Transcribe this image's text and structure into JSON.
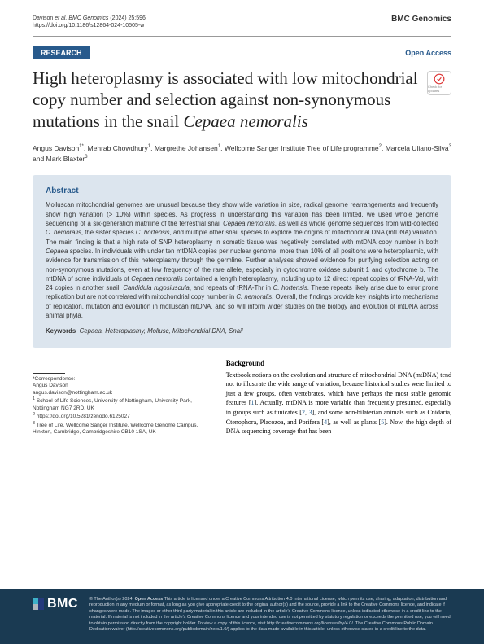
{
  "header": {
    "citation_authors": "Davison",
    "citation_journal": "et al. BMC Genomics",
    "citation_year_vol": "(2024) 25:596",
    "doi": "https://doi.org/10.1186/s12864-024-10505-w",
    "journal": "BMC Genomics"
  },
  "badges": {
    "research": "RESEARCH",
    "open_access": "Open Access"
  },
  "title_parts": {
    "main": "High heteroplasmy is associated with low mitochondrial copy number and selection against non-synonymous mutations in the snail ",
    "species": "Cepaea nemoralis"
  },
  "check_updates": "Check for updates",
  "authors_line": "Angus Davison<sup>1*</sup>, Mehrab Chowdhury<sup>1</sup>, Margrethe Johansen<sup>1</sup>, Wellcome Sanger Institute Tree of Life programme<sup>2</sup>, Marcela Uliano-Silva<sup>3</sup> and Mark Blaxter<sup>3</sup>",
  "abstract": {
    "heading": "Abstract",
    "text": "Molluscan mitochondrial genomes are unusual because they show wide variation in size, radical genome rearrangements and frequently show high variation (> 10%) within species. As progress in understanding this variation has been limited, we used whole genome sequencing of a six-generation matriline of the terrestrial snail <span class=\"italic\">Cepaea nemoralis</span>, as well as whole genome sequences from wild-collected <span class=\"italic\">C. nemoralis</span>, the sister species <span class=\"italic\">C. hortensis</span>, and multiple other snail species to explore the origins of mitochondrial DNA (mtDNA) variation. The main finding is that a high rate of SNP heteroplasmy in somatic tissue was negatively correlated with mtDNA copy number in both <span class=\"italic\">Cepaea</span> species. In individuals with under ten mtDNA copies per nuclear genome, more than 10% of all positions were heteroplasmic, with evidence for transmission of this heteroplasmy through the germline. Further analyses showed evidence for purifying selection acting on non-synonymous mutations, even at low frequency of the rare allele, especially in cytochrome oxidase subunit 1 and cytochrome b. The mtDNA of some individuals of <span class=\"italic\">Cepaea nemoralis</span> contained a length heteroplasmy, including up to 12 direct repeat copies of tRNA-Val, with 24 copies in another snail, <span class=\"italic\">Candidula rugosiuscula</span>, and repeats of tRNA-Thr in <span class=\"italic\">C. hortensis</span>. These repeats likely arise due to error prone replication but are not correlated with mitochondrial copy number in <span class=\"italic\">C. nemoralis</span>. Overall, the findings provide key insights into mechanisms of replication, mutation and evolution in molluscan mtDNA, and so will inform wider studies on the biology and evolution of mtDNA across animal phyla.",
    "keywords_label": "Keywords",
    "keywords": "Cepaea, Heteroplasmy, Mollusc, Mitochondrial DNA, Snail"
  },
  "correspondence": {
    "label": "*Correspondence:",
    "name": "Angus Davison",
    "email": "angus.davison@nottingham.ac.uk",
    "aff1": "<sup>1</sup> School of Life Sciences, University of Nottingham, University Park, Nottingham NG7 2RD, UK",
    "aff2": "<sup>2</sup> https://doi.org/10.5281/zenodo.6125027",
    "aff3": "<sup>3</sup> Tree of Life, Wellcome Sanger Institute, Wellcome Genome Campus, Hinxton, Cambridge, Cambridgeshire CB10 1SA, UK"
  },
  "background": {
    "heading": "Background",
    "text": "Textbook notions on the evolution and structure of mitochondrial DNA (mtDNA) tend not to illustrate the wide range of variation, because historical studies were limited to just a few groups, often vertebrates, which have perhaps the most stable genomic features [<span class=\"ref\">1</span>]. Actually, mtDNA is more variable than frequently presumed, especially in groups such as tunicates [<span class=\"ref\">2</span>, <span class=\"ref\">3</span>], and some non-bilaterian animals such as Cnidaria, Ctenophora, Placozoa, and Porifera [<span class=\"ref\">4</span>], as well as plants [<span class=\"ref\">5</span>]. Now, the high depth of DNA sequencing coverage that has been"
  },
  "footer": {
    "logo": "BMC",
    "copyright": "© The Author(s) 2024. <b>Open Access</b> This article is licensed under a Creative Commons Attribution 4.0 International License, which permits use, sharing, adaptation, distribution and reproduction in any medium or format, as long as you give appropriate credit to the original author(s) and the source, provide a link to the Creative Commons licence, and indicate if changes were made. The images or other third party material in this article are included in the article's Creative Commons licence, unless indicated otherwise in a credit line to the material. If material is not included in the article's Creative Commons licence and your intended use is not permitted by statutory regulation or exceeds the permitted use, you will need to obtain permission directly from the copyright holder. To view a copy of this licence, visit http://creativecommons.org/licenses/by/4.0/. The Creative Commons Public Domain Dedication waiver (http://creativecommons.org/publicdomain/zero/1.0/) applies to the data made available in this article, unless otherwise stated in a credit line to the data."
  },
  "colors": {
    "brand_blue": "#285a8c",
    "abstract_bg": "#dce5ee",
    "footer_bg": "#1a3a52",
    "bmc_sq1": "#3eb1c8",
    "bmc_sq2": "#253a7c",
    "bmc_sq3": "#b0b7bc"
  }
}
